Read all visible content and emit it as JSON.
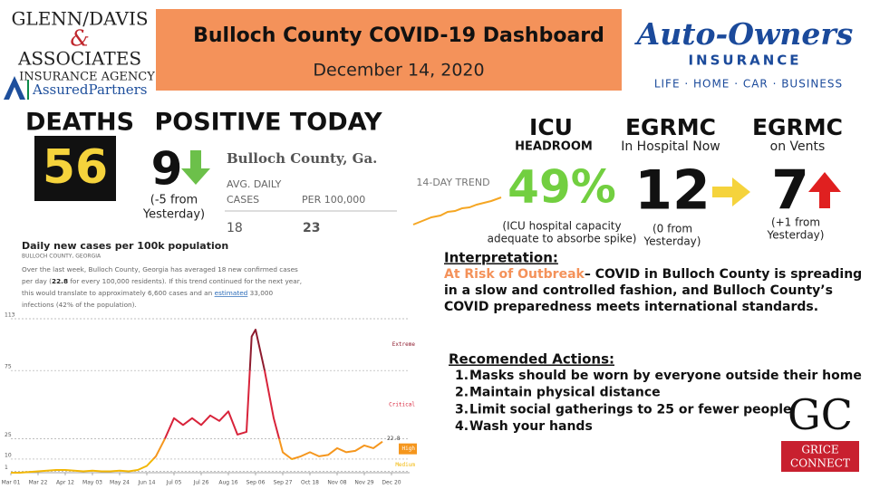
{
  "header": {
    "left_logo": {
      "line1": "Glenn/Davis",
      "amp": "&",
      "line2": "Associates",
      "line3": "Insurance Agency",
      "line4": "AssuredPartners"
    },
    "title": "Bulloch County COVID-19 Dashboard",
    "date": "December 14, 2020",
    "right_logo": {
      "name": "Auto-Owners",
      "sub": "INSURANCE",
      "tagline": "LIFE · HOME · CAR · BUSINESS"
    }
  },
  "stats": {
    "deaths": {
      "label": "DEATHS",
      "value": 56
    },
    "positive": {
      "label": "POSITIVE TODAY",
      "value": 9,
      "note": [
        "(-5 from",
        "Yesterday)"
      ]
    },
    "county": {
      "name": "Bulloch County, Ga.",
      "col1": [
        "AVG. DAILY",
        "CASES"
      ],
      "col2": "PER 100,000",
      "values": [
        18,
        23
      ],
      "trend": "14-DAY TREND"
    },
    "icu": {
      "label": "ICU",
      "sub": "HEADROOM",
      "value": "49%",
      "note": [
        "(ICU hospital capacity",
        "adequate to absorbe spike)"
      ]
    },
    "hospital": {
      "label": "EGRMC",
      "sub": "In Hospital Now",
      "value": 12,
      "note": [
        "(0 from",
        "Yesterday)"
      ]
    },
    "vents": {
      "label": "EGRMC",
      "sub": "on Vents",
      "value": 7,
      "note": [
        "(+1 from",
        "Yesterday)"
      ]
    }
  },
  "interpretation": {
    "heading": "Interpretation:",
    "risk": "At Risk of Outbreak",
    "lines": [
      "– COVID in Bulloch County is spreading",
      "in a slow and controlled fashion, and Bulloch County’s",
      "COVID preparedness meets international standards."
    ]
  },
  "actions": {
    "heading": "Recomended Actions:",
    "numbers": [
      "1.",
      "2.",
      "3.",
      "4."
    ],
    "items": [
      "Masks should be worn by everyone outside their home",
      "Maintain physical distance",
      "Limit social gatherings to 25 or fewer people",
      "Wash your hands"
    ]
  },
  "footer_logo": {
    "mark": "GC",
    "line1": "GRICE",
    "line2": "CONNECT"
  },
  "chart_data": {
    "type": "line",
    "title": "Daily new cases per 100k population",
    "subtitle": "BULLOCH COUNTY, GEORGIA",
    "description": [
      "Over the last week, Bulloch County, Georgia has averaged 18 new confirmed cases",
      "per day (",
      "22.8",
      " for every 100,000 residents). If this trend continued for the next year,",
      "this would translate to approximately 6,600 cases and an ",
      "estimated",
      " 33,000",
      "infections (42% of the population)."
    ],
    "x": [
      "Mar 01",
      "Mar 08",
      "Mar 15",
      "Mar 22",
      "Mar 29",
      "Apr 05",
      "Apr 12",
      "Apr 19",
      "Apr 26",
      "May 03",
      "May 10",
      "May 17",
      "May 24",
      "May 31",
      "Jun 07",
      "Jun 14",
      "Jun 21",
      "Jun 28",
      "Jul 05",
      "Jul 12",
      "Jul 19",
      "Jul 26",
      "Aug 02",
      "Aug 09",
      "Aug 16",
      "Aug 23",
      "Aug 30",
      "Sep 03",
      "Sep 06",
      "Sep 13",
      "Sep 20",
      "Sep 27",
      "Oct 04",
      "Oct 11",
      "Oct 18",
      "Oct 25",
      "Nov 01",
      "Nov 08",
      "Nov 15",
      "Nov 22",
      "Nov 29",
      "Dec 06",
      "Dec 13"
    ],
    "values": [
      0,
      0,
      0.5,
      1,
      1.5,
      2,
      2,
      1.5,
      1,
      1.5,
      1,
      1,
      1.5,
      1,
      2,
      5,
      12,
      25,
      40,
      35,
      40,
      35,
      42,
      38,
      45,
      28,
      30,
      100,
      105,
      75,
      40,
      15,
      10,
      12,
      15,
      12,
      13,
      18,
      15,
      16,
      20,
      18,
      22.8
    ],
    "value_labels": [
      null,
      null,
      null,
      null,
      null,
      null,
      null,
      null,
      null,
      null,
      null,
      null,
      null,
      null,
      null,
      null,
      null,
      null,
      null,
      null,
      null,
      null,
      null,
      null,
      null,
      null,
      null,
      null,
      null,
      null,
      null,
      null,
      null,
      null,
      null,
      null,
      null,
      null,
      null,
      null,
      null,
      null,
      "22.8"
    ],
    "xlim": [
      "Mar 01",
      "Jan 03"
    ],
    "xticks": [
      "Mar 01",
      "Mar 22",
      "Apr 12",
      "May 03",
      "May 24",
      "Jun 14",
      "Jul 05",
      "Jul 26",
      "Aug 16",
      "Sep 06",
      "Sep 27",
      "Oct 18",
      "Nov 08",
      "Nov 29",
      "Dec 20"
    ],
    "ylim": [
      0,
      113
    ],
    "yticks": [
      1,
      10,
      25,
      75,
      113
    ],
    "grid": true,
    "zones": [
      {
        "name": "Medium",
        "color": "#f2b705"
      },
      {
        "name": "High",
        "color": "#f5961d"
      },
      {
        "name": "Critical",
        "color": "#d8233a"
      },
      {
        "name": "Extreme",
        "color": "#8e1b2e"
      }
    ]
  }
}
